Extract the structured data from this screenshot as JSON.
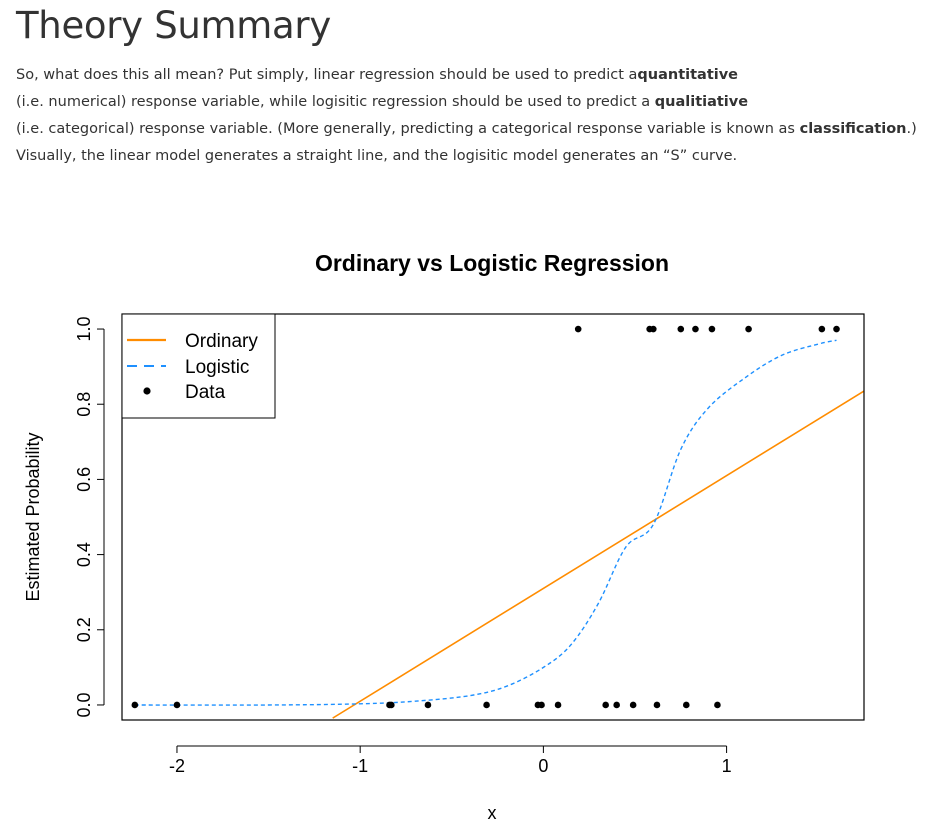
{
  "page": {
    "title": "Theory Summary",
    "paragraph": {
      "p1": "So, what does this all mean? Put simply, linear regression should be used to predict a",
      "b1": "quantitative",
      "p2": "(i.e. numerical) response variable, while logisitic regression should be used to predict a ",
      "b2": "qualitiative",
      "p3": "(i.e. categorical) response variable. (More generally, predicting a categorical response variable is known as ",
      "b3": "classification",
      "p4": ".) Visually, the linear model generates a straight line, and the logisitic model generates an “S” curve."
    }
  },
  "chart_data": {
    "type": "line",
    "title": "Ordinary vs Logistic Regression",
    "xlabel": "x",
    "ylabel": "Estimated Probability",
    "xlim": [
      -2.3,
      1.75
    ],
    "ylim": [
      -0.04,
      1.04
    ],
    "x_ticks": [
      "-2",
      "-1",
      "0",
      "1"
    ],
    "y_ticks": [
      "0.0",
      "0.2",
      "0.4",
      "0.6",
      "0.8",
      "1.0"
    ],
    "legend_position": "top-left",
    "series": [
      {
        "name": "Ordinary",
        "style": "solid",
        "color": "#ff8c00",
        "slope": 0.3,
        "intercept": 0.31,
        "x_range": [
          -1.15,
          1.75
        ]
      },
      {
        "name": "Logistic",
        "style": "dashed",
        "color": "#1e90ff",
        "points": [
          [
            -2.23,
            0.0
          ],
          [
            -1.5,
            0.0
          ],
          [
            -1.0,
            0.003
          ],
          [
            -0.7,
            0.01
          ],
          [
            -0.4,
            0.025
          ],
          [
            -0.2,
            0.05
          ],
          [
            0.0,
            0.1
          ],
          [
            0.15,
            0.16
          ],
          [
            0.3,
            0.27
          ],
          [
            0.45,
            0.42
          ],
          [
            0.6,
            0.48
          ],
          [
            0.75,
            0.68
          ],
          [
            0.9,
            0.79
          ],
          [
            1.1,
            0.87
          ],
          [
            1.3,
            0.93
          ],
          [
            1.5,
            0.96
          ],
          [
            1.6,
            0.97
          ]
        ]
      },
      {
        "name": "Data",
        "style": "points",
        "color": "#000000",
        "x": [
          -2.23,
          -2.0,
          -0.84,
          -0.83,
          -0.63,
          -0.31,
          -0.03,
          -0.01,
          0.08,
          0.34,
          0.4,
          0.49,
          0.62,
          0.78,
          0.95,
          0.19,
          0.58,
          0.6,
          0.75,
          0.83,
          0.92,
          1.12,
          1.52,
          1.6
        ],
        "y": [
          0,
          0,
          0,
          0,
          0,
          0,
          0,
          0,
          0,
          0,
          0,
          0,
          0,
          0,
          0,
          1,
          1,
          1,
          1,
          1,
          1,
          1,
          1,
          1
        ]
      }
    ]
  }
}
